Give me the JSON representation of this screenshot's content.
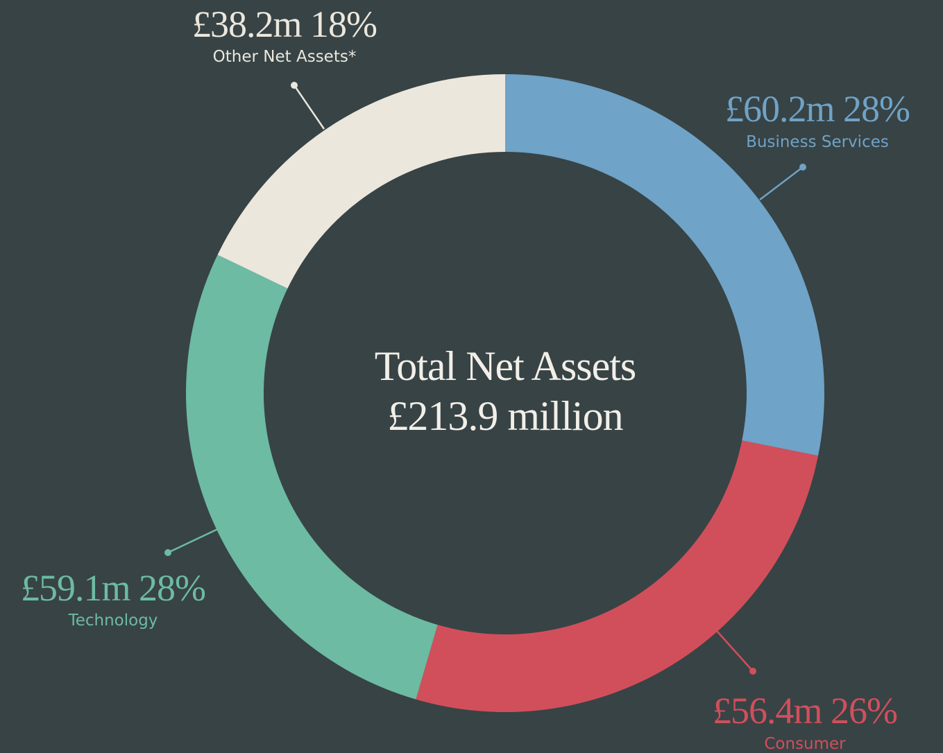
{
  "chart_data": {
    "type": "donut",
    "title": "Total Net Assets",
    "total": 213.9,
    "total_label": "£213.9 million",
    "categories": [
      "Business Services",
      "Consumer",
      "Technology",
      "Other Net Assets*"
    ],
    "values": [
      60.2,
      56.4,
      59.1,
      38.2
    ],
    "value_labels": [
      "£60.2m",
      "£56.4m",
      "£59.1m",
      "£38.2m"
    ],
    "percents": [
      28,
      26,
      28,
      18
    ],
    "percent_labels": [
      "28%",
      "26%",
      "28%",
      "18%"
    ],
    "colors": [
      "#6fa3c7",
      "#d14f5b",
      "#6cbba2",
      "#ebe7dd"
    ]
  }
}
